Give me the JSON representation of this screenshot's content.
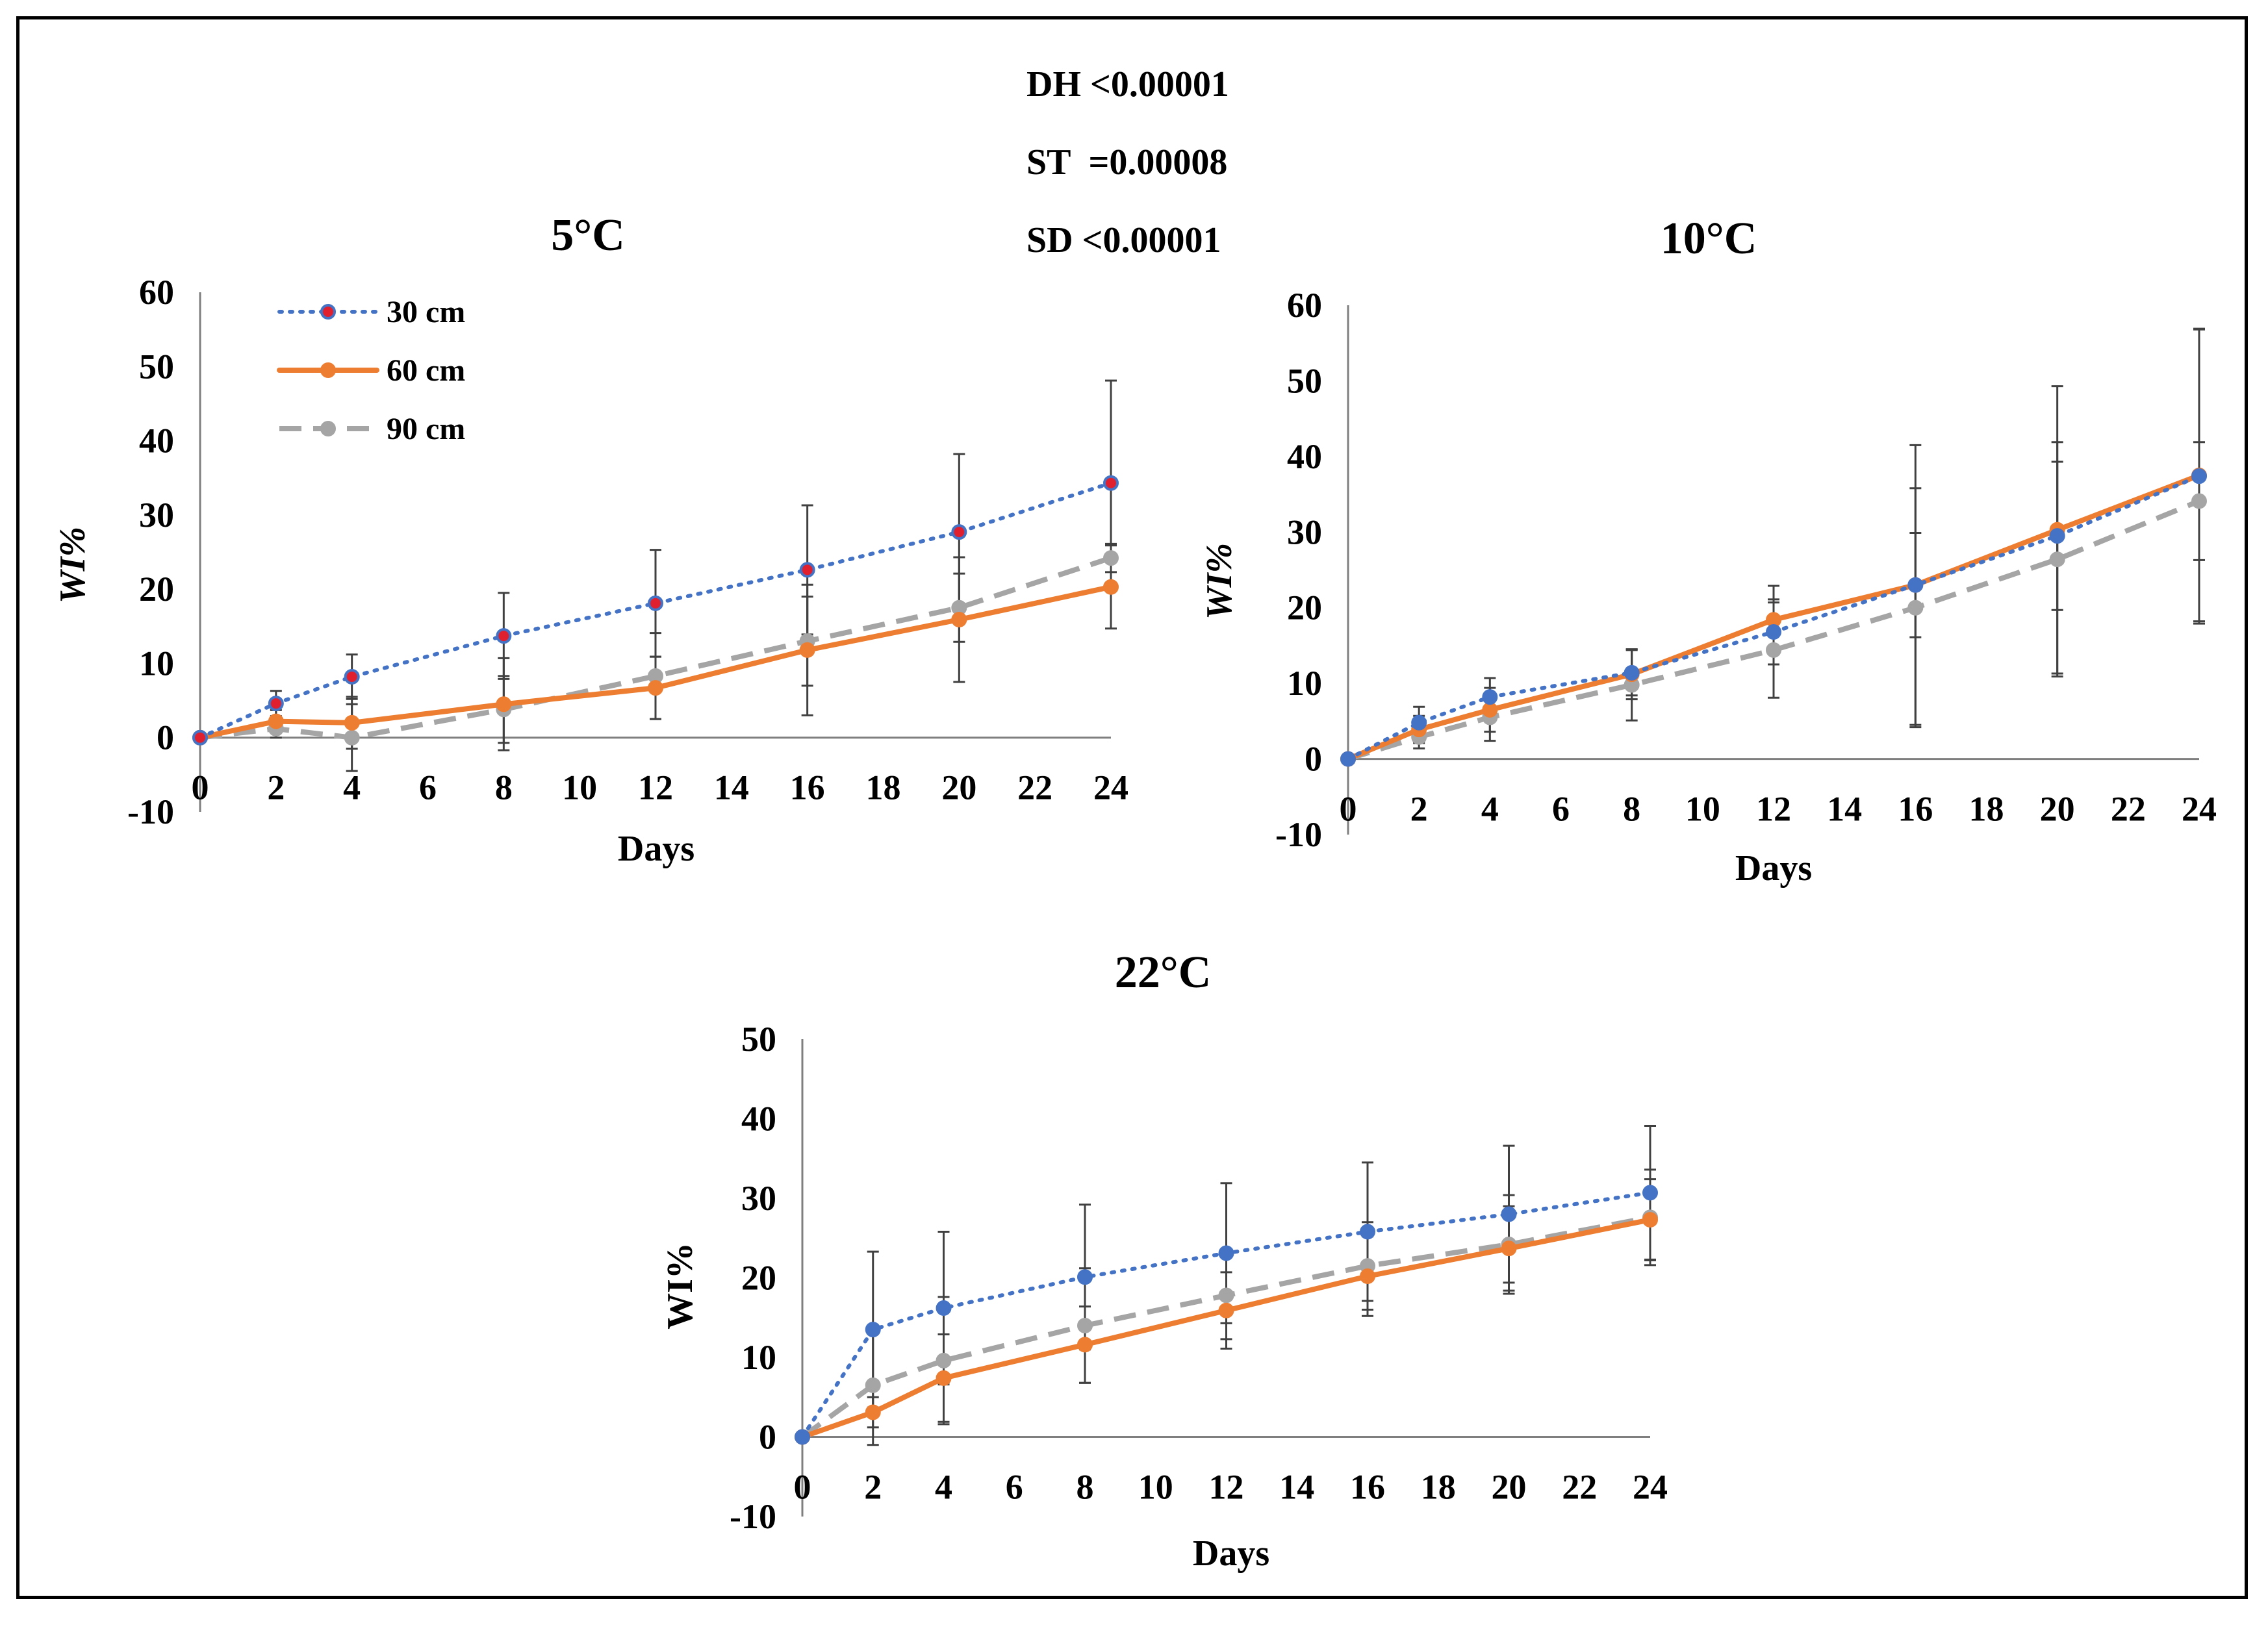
{
  "stats": [
    {
      "label": "DH",
      "value": "<0.00001"
    },
    {
      "label": "ST",
      "value": " =0.00008"
    },
    {
      "label": "SD",
      "value": "<0.00001"
    }
  ],
  "colors": {
    "s30": "#4472C4",
    "s30_marker_fill": "#E0202E",
    "s60": "#ED7D31",
    "s90": "#A5A5A5",
    "error": "#404040"
  },
  "chart_data": [
    {
      "type": "line",
      "title": "5°C",
      "xlabel": "Days",
      "ylabel": "WI%",
      "xlim": [
        0,
        24
      ],
      "ylim": [
        -10,
        60
      ],
      "xticks": [
        0,
        2,
        4,
        6,
        8,
        10,
        12,
        14,
        16,
        18,
        20,
        22,
        24
      ],
      "yticks": [
        -10,
        0,
        10,
        20,
        30,
        40,
        50,
        60
      ],
      "legend": "top-left",
      "grid": false,
      "x": [
        0,
        2,
        4,
        8,
        12,
        16,
        20,
        24
      ],
      "series": [
        {
          "name": "30 cm",
          "style": "dotted",
          "values": [
            0,
            4.6,
            8.2,
            13.7,
            18.1,
            22.6,
            27.7,
            34.3
          ],
          "error": [
            0,
            1.7,
            3.0,
            5.8,
            7.2,
            8.7,
            10.5,
            13.8
          ]
        },
        {
          "name": "60 cm",
          "style": "solid",
          "values": [
            0,
            2.2,
            2.0,
            4.5,
            6.7,
            11.8,
            15.9,
            20.3
          ],
          "error": [
            0,
            1.5,
            3.5,
            6.2,
            4.2,
            8.8,
            8.4,
            5.6
          ]
        },
        {
          "name": "90 cm",
          "style": "dashed",
          "values": [
            0,
            1.2,
            0.0,
            3.8,
            8.3,
            13.0,
            17.5,
            24.2
          ],
          "error": [
            0,
            1.2,
            4.5,
            4.5,
            5.8,
            6.0,
            4.6,
            1.9
          ]
        }
      ]
    },
    {
      "type": "line",
      "title": "10°C",
      "xlabel": "Days",
      "ylabel": "WI%",
      "xlim": [
        0,
        24
      ],
      "ylim": [
        -10,
        60
      ],
      "xticks": [
        0,
        2,
        4,
        6,
        8,
        10,
        12,
        14,
        16,
        18,
        20,
        22,
        24
      ],
      "yticks": [
        -10,
        0,
        10,
        20,
        30,
        40,
        50,
        60
      ],
      "grid": false,
      "x": [
        0,
        2,
        4,
        8,
        12,
        16,
        20,
        24
      ],
      "series": [
        {
          "name": "30 cm",
          "style": "dotted",
          "values": [
            0,
            4.8,
            8.2,
            11.4,
            16.8,
            23.0,
            29.5,
            37.4
          ],
          "error": [
            0,
            2.1,
            2.5,
            3.0,
            4.3,
            6.9,
            9.8,
            19.5
          ]
        },
        {
          "name": "60 cm",
          "style": "solid",
          "values": [
            0,
            3.9,
            6.5,
            11.2,
            18.4,
            23.0,
            30.3,
            37.5
          ],
          "error": [
            0,
            1.8,
            2.9,
            3.3,
            4.5,
            18.5,
            19.0,
            19.3
          ]
        },
        {
          "name": "90 cm",
          "style": "dashed",
          "values": [
            0,
            2.9,
            5.5,
            9.8,
            14.4,
            20.0,
            26.4,
            34.1
          ],
          "error": [
            0,
            1.5,
            3.1,
            4.7,
            6.3,
            15.8,
            15.5,
            7.8
          ]
        }
      ]
    },
    {
      "type": "line",
      "title": "22°C",
      "xlabel": "Days",
      "ylabel": "WI%",
      "xlim": [
        0,
        24
      ],
      "ylim": [
        -10,
        50
      ],
      "xticks": [
        0,
        2,
        4,
        6,
        8,
        10,
        12,
        14,
        16,
        18,
        20,
        22,
        24
      ],
      "yticks": [
        -10,
        0,
        10,
        20,
        30,
        40,
        50
      ],
      "grid": false,
      "x": [
        0,
        2,
        4,
        8,
        12,
        16,
        20,
        24
      ],
      "series": [
        {
          "name": "30 cm",
          "style": "dotted",
          "values": [
            0,
            13.5,
            16.2,
            20.1,
            23.1,
            25.8,
            28.0,
            30.7
          ],
          "error": [
            0,
            9.8,
            9.6,
            9.1,
            8.8,
            8.7,
            8.6,
            8.4
          ]
        },
        {
          "name": "60 cm",
          "style": "solid",
          "values": [
            0,
            3.1,
            7.4,
            11.6,
            15.9,
            20.2,
            23.7,
            27.3
          ],
          "error": [
            0,
            1.9,
            5.5,
            4.8,
            4.8,
            5.0,
            5.3,
            5.1
          ]
        },
        {
          "name": "90 cm",
          "style": "dashed",
          "values": [
            0,
            6.5,
            9.6,
            14.0,
            17.8,
            21.5,
            24.2,
            27.6
          ],
          "error": [
            0,
            7.5,
            8.0,
            7.2,
            5.5,
            5.5,
            6.2,
            6.0
          ]
        }
      ]
    }
  ]
}
